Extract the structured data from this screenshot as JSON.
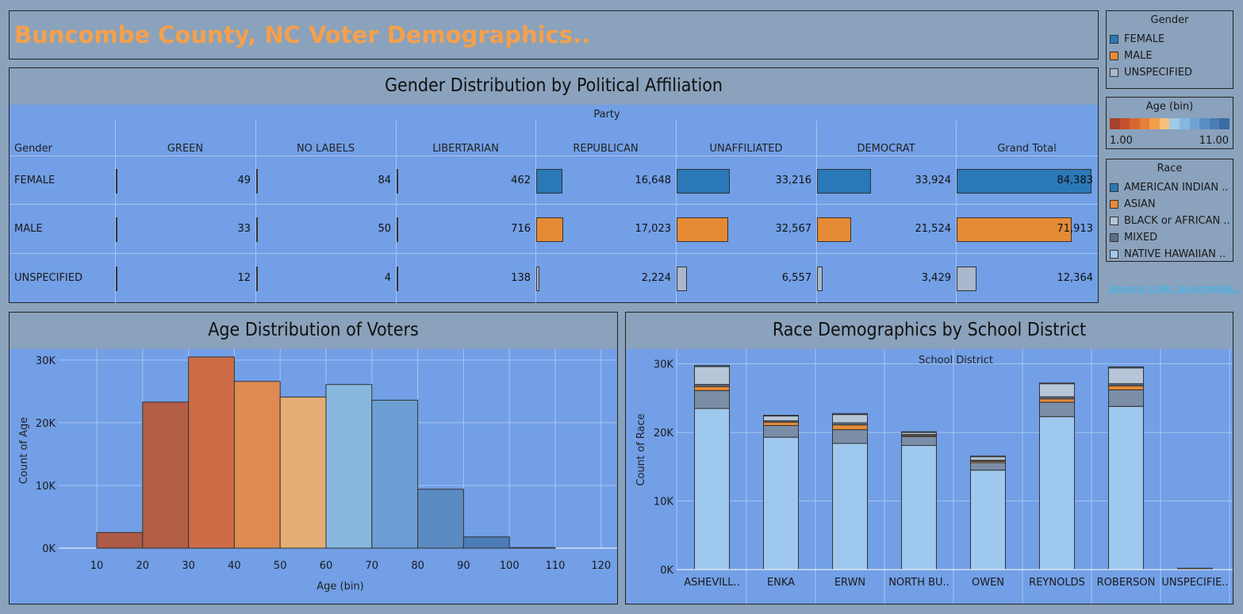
{
  "title": "Buncombe County, NC Voter Demographics..",
  "legends": {
    "gender": {
      "title": "Gender",
      "items": [
        {
          "label": "FEMALE",
          "color": "#2a78b8"
        },
        {
          "label": "MALE",
          "color": "#e58a35"
        },
        {
          "label": "UNSPECIFIED",
          "color": "#a9b8cc"
        }
      ]
    },
    "age": {
      "title": "Age (bin)",
      "min_label": "1.00",
      "max_label": "11.00",
      "colors": [
        "#a9402c",
        "#c4502c",
        "#d8672f",
        "#e5803a",
        "#f3a04a",
        "#f7c07a",
        "#9ecae6",
        "#86b7df",
        "#6fa3d4",
        "#5a8fc6",
        "#4a7db7",
        "#3b6aa5"
      ]
    },
    "race": {
      "title": "Race",
      "items": [
        {
          "label": "AMERICAN INDIAN ..",
          "color": "#2a78b8"
        },
        {
          "label": "ASIAN",
          "color": "#e58a35"
        },
        {
          "label": "BLACK or AFRICAN ..",
          "color": "#b6c6d8"
        },
        {
          "label": "MIXED",
          "color": "#5c6f88"
        },
        {
          "label": "NATIVE HAWAIIAN ..",
          "color": "#9ec8ee"
        }
      ]
    }
  },
  "source_link": "Source Link: buncombe..",
  "gender_table": {
    "title": "Gender Distribution by Political Affiliation",
    "column_group": "Party",
    "row_header": "Gender",
    "columns": [
      "GREEN",
      "NO LABELS",
      "LIBERTARIAN",
      "REPUBLICAN",
      "UNAFFILIATED",
      "DEMOCRAT",
      "Grand Total"
    ],
    "rows": [
      {
        "label": "FEMALE",
        "color": "#2a78b8",
        "values": [
          49,
          84,
          462,
          16648,
          33216,
          33924,
          84383
        ],
        "display": [
          "49",
          "84",
          "462",
          "16,648",
          "33,216",
          "33,924",
          "84,383"
        ]
      },
      {
        "label": "MALE",
        "color": "#e58a35",
        "values": [
          33,
          50,
          716,
          17023,
          32567,
          21524,
          71913
        ],
        "display": [
          "33",
          "50",
          "716",
          "17,023",
          "32,567",
          "21,524",
          "71,913"
        ]
      },
      {
        "label": "UNSPECIFIED",
        "color": "#a9b8cc",
        "values": [
          12,
          4,
          138,
          2224,
          6557,
          3429,
          12364
        ],
        "display": [
          "12",
          "4",
          "138",
          "2,224",
          "6,557",
          "3,429",
          "12,364"
        ]
      }
    ]
  },
  "chart_data": [
    {
      "type": "bar",
      "title": "Age Distribution of Voters",
      "xlabel": "Age (bin)",
      "ylabel": "Count of Age",
      "x_ticks": [
        "10",
        "20",
        "30",
        "40",
        "50",
        "60",
        "70",
        "80",
        "90",
        "100",
        "110",
        "120"
      ],
      "y_ticks": [
        "0K",
        "10K",
        "20K",
        "30K"
      ],
      "ylim": [
        0,
        31000
      ],
      "bins": [
        {
          "start": 10,
          "end": 20,
          "value": 2500,
          "color": "#ad5a46"
        },
        {
          "start": 20,
          "end": 30,
          "value": 23300,
          "color": "#b35e47"
        },
        {
          "start": 30,
          "end": 40,
          "value": 30500,
          "color": "#cc6d47"
        },
        {
          "start": 40,
          "end": 50,
          "value": 26600,
          "color": "#de8a52"
        },
        {
          "start": 50,
          "end": 60,
          "value": 24100,
          "color": "#e4ad73"
        },
        {
          "start": 60,
          "end": 70,
          "value": 26100,
          "color": "#86b8df"
        },
        {
          "start": 70,
          "end": 80,
          "value": 23600,
          "color": "#6c9fd3"
        },
        {
          "start": 80,
          "end": 90,
          "value": 9400,
          "color": "#5a8bc1"
        },
        {
          "start": 90,
          "end": 100,
          "value": 1800,
          "color": "#4c7db6"
        },
        {
          "start": 100,
          "end": 110,
          "value": 100,
          "color": "#4a7ab2"
        },
        {
          "start": 110,
          "end": 120,
          "value": 0,
          "color": "#4a7ab2"
        }
      ]
    },
    {
      "type": "bar",
      "stacked": true,
      "title": "Race Demographics by School District",
      "x_title": "School District",
      "ylabel": "Count of Race",
      "y_ticks": [
        "0K",
        "10K",
        "20K",
        "30K"
      ],
      "ylim": [
        0,
        31000
      ],
      "categories": [
        "ASHEVILL..",
        "ENKA",
        "ERWN",
        "NORTH BU..",
        "OWEN",
        "REYNOLDS",
        "ROBERSON",
        "UNSPECIFIE.."
      ],
      "series": [
        {
          "color": "#9ec8ee",
          "values": [
            23500,
            19300,
            18400,
            18100,
            14500,
            22300,
            23800,
            0
          ]
        },
        {
          "color": "#7b8ea8",
          "values": [
            2600,
            1700,
            2000,
            1300,
            1100,
            2100,
            2400,
            0
          ]
        },
        {
          "color": "#e58a35",
          "values": [
            600,
            500,
            700,
            150,
            200,
            500,
            600,
            0
          ]
        },
        {
          "color": "#5c6f88",
          "values": [
            300,
            200,
            300,
            150,
            150,
            300,
            300,
            100
          ]
        },
        {
          "color": "#b6c6d8",
          "values": [
            2600,
            700,
            1200,
            300,
            500,
            1900,
            2300,
            100
          ]
        },
        {
          "color": "#2a78b8",
          "values": [
            150,
            100,
            150,
            100,
            100,
            100,
            150,
            0
          ]
        }
      ]
    }
  ]
}
